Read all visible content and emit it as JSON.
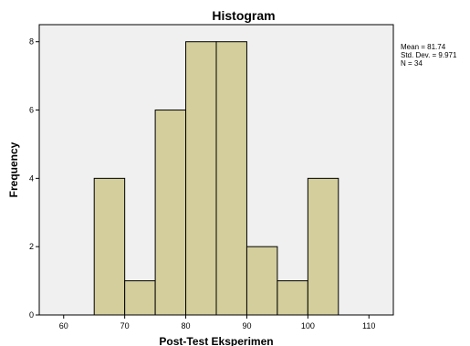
{
  "chart_data": {
    "type": "bar",
    "title": "Histogram",
    "xlabel": "Post-Test Eksperimen",
    "ylabel": "Frequency",
    "bins": [
      {
        "start": 65,
        "end": 70,
        "value": 4
      },
      {
        "start": 70,
        "end": 75,
        "value": 1
      },
      {
        "start": 75,
        "end": 80,
        "value": 6
      },
      {
        "start": 80,
        "end": 85,
        "value": 8
      },
      {
        "start": 85,
        "end": 90,
        "value": 8
      },
      {
        "start": 90,
        "end": 95,
        "value": 2
      },
      {
        "start": 95,
        "end": 100,
        "value": 1
      },
      {
        "start": 100,
        "end": 105,
        "value": 4
      }
    ],
    "xlim": [
      56,
      114
    ],
    "ylim": [
      0,
      8.5
    ],
    "xticks": [
      "60",
      "70",
      "80",
      "90",
      "100",
      "110"
    ],
    "yticks": [
      "0",
      "2",
      "4",
      "6",
      "8"
    ],
    "stats": [
      "Mean = 81.74",
      "Std. Dev. = 9.971",
      "N = 34"
    ],
    "grid": false,
    "colors": {
      "plot_background": "#f0f0f0",
      "bar_fill": "#d3ce9b",
      "bar_stroke": "#000000"
    }
  }
}
